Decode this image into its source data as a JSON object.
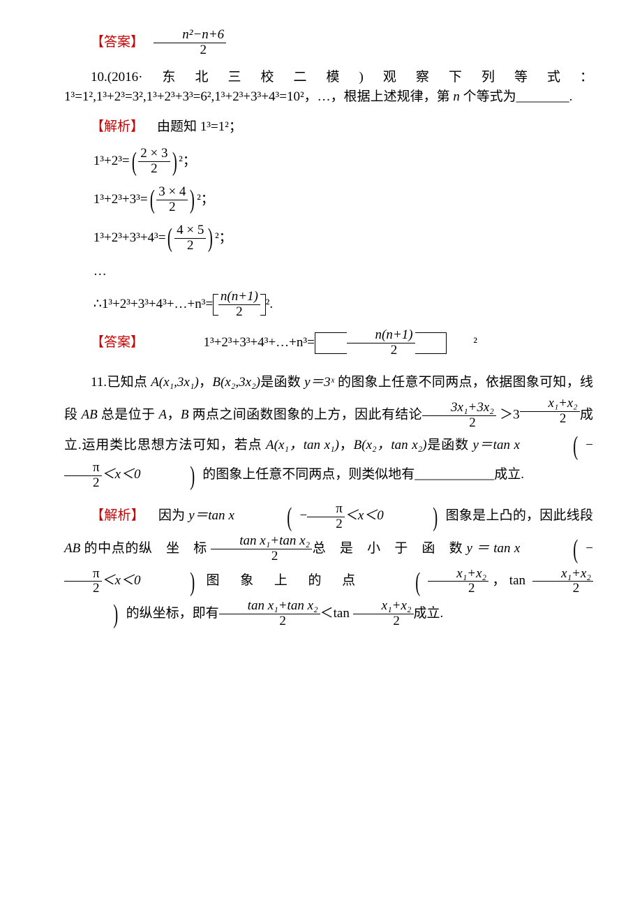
{
  "colors": {
    "label": "#cc0000",
    "text": "#000000",
    "bg": "#ffffff"
  },
  "fonts": {
    "body_pt": 19,
    "sup_scale": 0.7
  },
  "ans_label": "【答案】",
  "solution_label": "【解析】",
  "q9_answer_num": "n²−n+6",
  "q9_answer_den": "2",
  "q10": {
    "prefix": "10.(2016·东北三校二模)观察下列等式：1³=1²,1³+2³=3²,1³+2³+3³=6²,1³+2³+3³+4³=10²，…，根据上述规律，第 ",
    "nvar": "n",
    "suffix": " 个等式为________.",
    "sol_intro": "由题知 1³=1²；",
    "eqs": [
      {
        "lhs": "1³+2³=",
        "num": "2 × 3",
        "den": "2",
        "tail": "²；"
      },
      {
        "lhs": "1³+2³+3³=",
        "num": "3 × 4",
        "den": "2",
        "tail": "²；"
      },
      {
        "lhs": "1³+2³+3³+4³=",
        "num": "4 × 5",
        "den": "2",
        "tail": "²；"
      }
    ],
    "dots": "…",
    "concl_lhs": "∴1³+2³+3³+4³+…+n³=",
    "concl_num": "n(n+1)",
    "concl_den": "2",
    "concl_tail": "².",
    "answer_lhs": "1³+2³+3³+4³+…+n³=",
    "answer_num": "n(n+1)",
    "answer_den": "2",
    "answer_tail": "²"
  },
  "q11": {
    "p1a": "11.已知点 ",
    "ptA1": "A(x₁,3x₁​)",
    "sep1": "，",
    "ptB1": "B(x₂,3x₂​)",
    "p1b": "是函数 ",
    "fn1": "y＝3ˣ",
    "p1c": " 的图象上任意不同两点，依据图象可知，线段 ",
    "AB": "AB",
    "p1d": " 总是位于 ",
    "A": "A",
    "p1e": "，",
    "B": "B",
    "p1f": " 两点之间函数图象的上方，因此有结论",
    "frac1_num": "3x₁+3x₂",
    "frac1_den": "2",
    "gt": "＞3",
    "frac2_num": "x₁+x₂",
    "frac2_den": "2",
    "p1g": "成立.运用类比思想方法可知，若点 ",
    "ptA2": "A(x₁，tan x₁)",
    "ptB2": "B(x₂，tan x₂)",
    "p1h": "是函数 ",
    "fn2a": "y＝tan x",
    "domain_inner_a": "−",
    "domain_pi": "π",
    "domain_2": "2",
    "domain_mid": "＜x＜0",
    "p1i": "的图象上任意不同两点，则类似地有____________成立.",
    "sol_a": "因为 ",
    "fn3": "y＝tan x",
    "sol_b": "图象是上凸的，因此线段 ",
    "sol_c": " 的中点的纵　坐　标",
    "mid_num": "tan x₁+tan x₂",
    "mid_den": "2",
    "sol_d": "总　是　小　于　函　数 ",
    "fn4": "y ＝ tan x",
    "sol_e": "图　象　上　的　点",
    "pt_mid_a_num": "x₁+x₂",
    "pt_mid_a_den": "2",
    "pt_mid_sep": "，tan ",
    "pt_mid_b_num": "x₁+x₂",
    "pt_mid_b_den": "2",
    "sol_f": "的纵坐标，即有",
    "concl_num": "tan x₁+tan x₂",
    "concl_den": "2",
    "lt": "＜tan ",
    "concl2_num": "x₁+x₂",
    "concl2_den": "2",
    "sol_g": "成立."
  }
}
